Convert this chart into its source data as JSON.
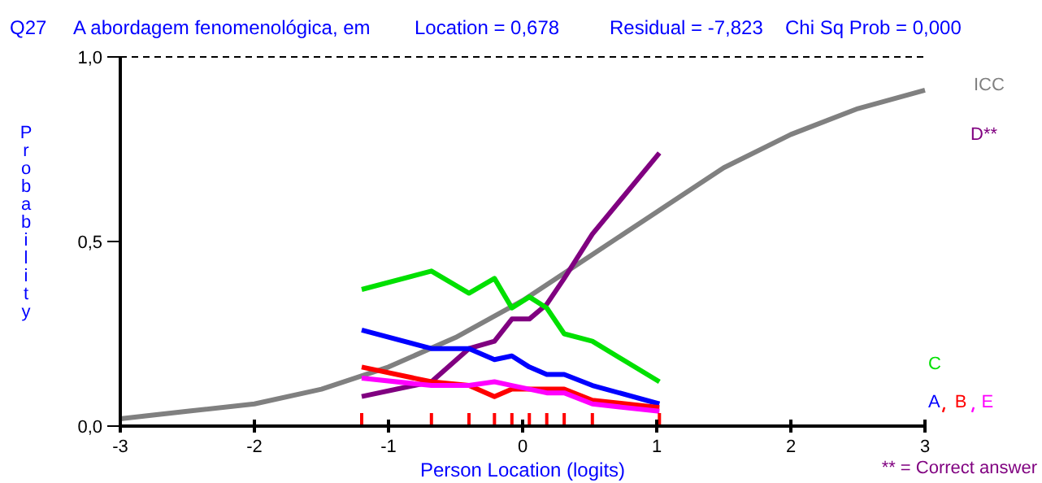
{
  "chart_data": {
    "type": "line",
    "title": "Q27",
    "subtitle": "A abordagem fenomenológica, em",
    "annotations": [
      "Location = 0,678",
      "Residual = -7,823",
      "Chi Sq Prob = 0,000",
      "** = Correct answer"
    ],
    "xlabel": "Person Location (logits)",
    "ylabel": "Probability",
    "xlim": [
      -3,
      3
    ],
    "ylim": [
      0,
      1
    ],
    "xticks": [
      -3,
      -2,
      -1,
      0,
      1,
      2,
      3
    ],
    "yticks": [
      {
        "value": 0,
        "label": "0,0"
      },
      {
        "value": 0.5,
        "label": "0,5"
      },
      {
        "value": 1,
        "label": "1,0"
      }
    ],
    "ref_lines": [
      {
        "axis": "y",
        "value": 1,
        "line_style": "dashed",
        "color": "#000000"
      }
    ],
    "legend": "right",
    "grid": false,
    "series": [
      {
        "name": "ICC",
        "color": "#808080",
        "x": [
          -3,
          -2.5,
          -2,
          -1.5,
          -1,
          -0.5,
          0,
          0.5,
          1,
          1.5,
          2,
          2.5,
          3
        ],
        "values": [
          0.02,
          0.04,
          0.06,
          0.1,
          0.16,
          0.24,
          0.34,
          0.46,
          0.58,
          0.7,
          0.79,
          0.86,
          0.91
        ]
      },
      {
        "name": "D**",
        "color": "#800080",
        "x": [
          -1.2,
          -0.68,
          -0.4,
          -0.21,
          -0.08,
          0.05,
          0.18,
          0.31,
          0.52,
          1.02
        ],
        "values": [
          0.08,
          0.12,
          0.21,
          0.23,
          0.29,
          0.29,
          0.33,
          0.4,
          0.52,
          0.74
        ]
      },
      {
        "name": "C",
        "color": "#00e000",
        "x": [
          -1.2,
          -0.68,
          -0.4,
          -0.21,
          -0.08,
          0.05,
          0.18,
          0.31,
          0.52,
          1.02
        ],
        "values": [
          0.37,
          0.42,
          0.36,
          0.4,
          0.32,
          0.35,
          0.32,
          0.25,
          0.23,
          0.12
        ]
      },
      {
        "name": "A",
        "color": "#0000ff",
        "x": [
          -1.2,
          -0.68,
          -0.4,
          -0.21,
          -0.08,
          0.05,
          0.18,
          0.31,
          0.52,
          1.02
        ],
        "values": [
          0.26,
          0.21,
          0.21,
          0.18,
          0.19,
          0.16,
          0.14,
          0.14,
          0.11,
          0.06
        ]
      },
      {
        "name": "B",
        "color": "#ff0000",
        "x": [
          -1.2,
          -0.68,
          -0.4,
          -0.21,
          -0.08,
          0.05,
          0.18,
          0.31,
          0.52,
          1.02
        ],
        "values": [
          0.16,
          0.12,
          0.11,
          0.08,
          0.1,
          0.1,
          0.1,
          0.1,
          0.07,
          0.05
        ]
      },
      {
        "name": "E",
        "color": "#ff00ff",
        "x": [
          -1.2,
          -0.68,
          -0.4,
          -0.21,
          -0.08,
          0.05,
          0.18,
          0.31,
          0.52,
          1.02
        ],
        "values": [
          0.13,
          0.11,
          0.11,
          0.12,
          0.11,
          0.1,
          0.09,
          0.09,
          0.06,
          0.04
        ]
      }
    ]
  }
}
